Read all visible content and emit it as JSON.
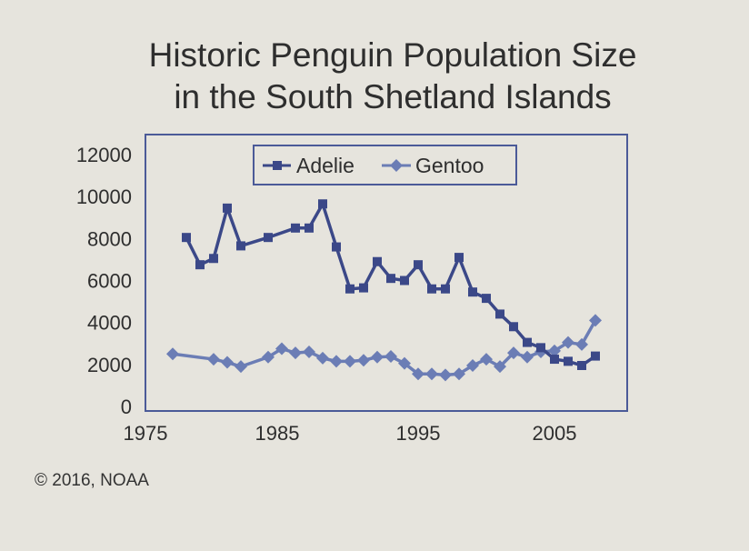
{
  "chart_data": {
    "type": "line",
    "title": "Historic Penguin Population Size in the South Shetland Islands",
    "title_lines": [
      "Historic Penguin Population Size",
      "in the South Shetland Islands"
    ],
    "xlabel": "",
    "ylabel": "",
    "xlim": [
      1975,
      2010
    ],
    "ylim": [
      0,
      12000
    ],
    "x_ticks": [
      1975,
      1985,
      1995,
      2005
    ],
    "y_ticks": [
      0,
      2000,
      4000,
      6000,
      8000,
      10000,
      12000
    ],
    "legend_position": "top-center",
    "series": [
      {
        "name": "Adelie",
        "color": "#3b4888",
        "marker": "square",
        "x": [
          1978,
          1979,
          1980,
          1981,
          1982,
          1984,
          1986,
          1987,
          1988,
          1989,
          1990,
          1991,
          1992,
          1993,
          1994,
          1995,
          1996,
          1997,
          1998,
          1999,
          2000,
          2001,
          2002,
          2003,
          2004,
          2005,
          2006,
          2007,
          2008
        ],
        "y": [
          8050,
          6750,
          7050,
          9450,
          7650,
          8050,
          8500,
          8500,
          9650,
          7600,
          5600,
          5650,
          6900,
          6100,
          6000,
          6750,
          5600,
          5600,
          7100,
          5450,
          5150,
          4400,
          3800,
          3050,
          2800,
          2250,
          2150,
          1950,
          2400
        ]
      },
      {
        "name": "Gentoo",
        "color": "#6b7db5",
        "marker": "diamond",
        "x": [
          1977,
          1980,
          1981,
          1982,
          1984,
          1985,
          1986,
          1987,
          1988,
          1989,
          1990,
          1991,
          1992,
          1993,
          1994,
          1995,
          1996,
          1997,
          1998,
          1999,
          2000,
          2001,
          2002,
          2003,
          2004,
          2005,
          2006,
          2007,
          2008
        ],
        "y": [
          2500,
          2250,
          2100,
          1900,
          2350,
          2750,
          2550,
          2600,
          2300,
          2150,
          2150,
          2200,
          2350,
          2380,
          2050,
          1550,
          1550,
          1500,
          1550,
          1950,
          2250,
          1900,
          2550,
          2350,
          2600,
          2650,
          3050,
          2950,
          4100
        ]
      }
    ]
  },
  "copyright": "© 2016, NOAA"
}
